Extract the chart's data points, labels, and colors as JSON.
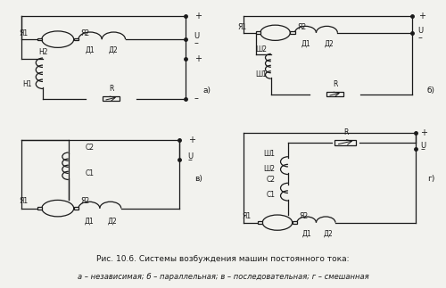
{
  "title": "Рис. 10.6. Системы возбуждения машин постоянного тока:",
  "subtitle": "а – независимая; б – параллельная; в – последовательная; г – смешанная",
  "bg_color": "#f2f2ee",
  "line_color": "#1a1a1a",
  "panel_labels": [
    "а)",
    "б)",
    "в)",
    "г)"
  ]
}
